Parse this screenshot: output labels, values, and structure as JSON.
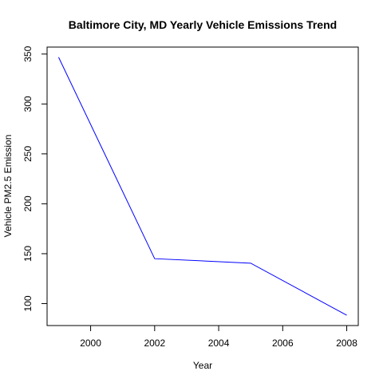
{
  "chart_data": {
    "type": "line",
    "title": "Baltimore City, MD Yearly Vehicle Emissions Trend",
    "xlabel": "Year",
    "ylabel": "Vehicle PM2.5 Emission",
    "x": [
      1999,
      2002,
      2005,
      2008
    ],
    "series": [
      {
        "values": [
          346.8,
          145.0,
          140.5,
          88.3
        ],
        "color": "#0000ff"
      }
    ],
    "xlim": [
      1998.64,
      2008.36
    ],
    "ylim": [
      78.0,
      357.0
    ],
    "xticks": [
      2000,
      2002,
      2004,
      2006,
      2008
    ],
    "yticks": [
      100,
      150,
      200,
      250,
      300,
      350
    ],
    "xtick_labels": [
      "2000",
      "2002",
      "2004",
      "2006",
      "2008"
    ],
    "ytick_labels": [
      "100",
      "150",
      "200",
      "250",
      "300",
      "350"
    ],
    "grid": false,
    "legend": false
  }
}
